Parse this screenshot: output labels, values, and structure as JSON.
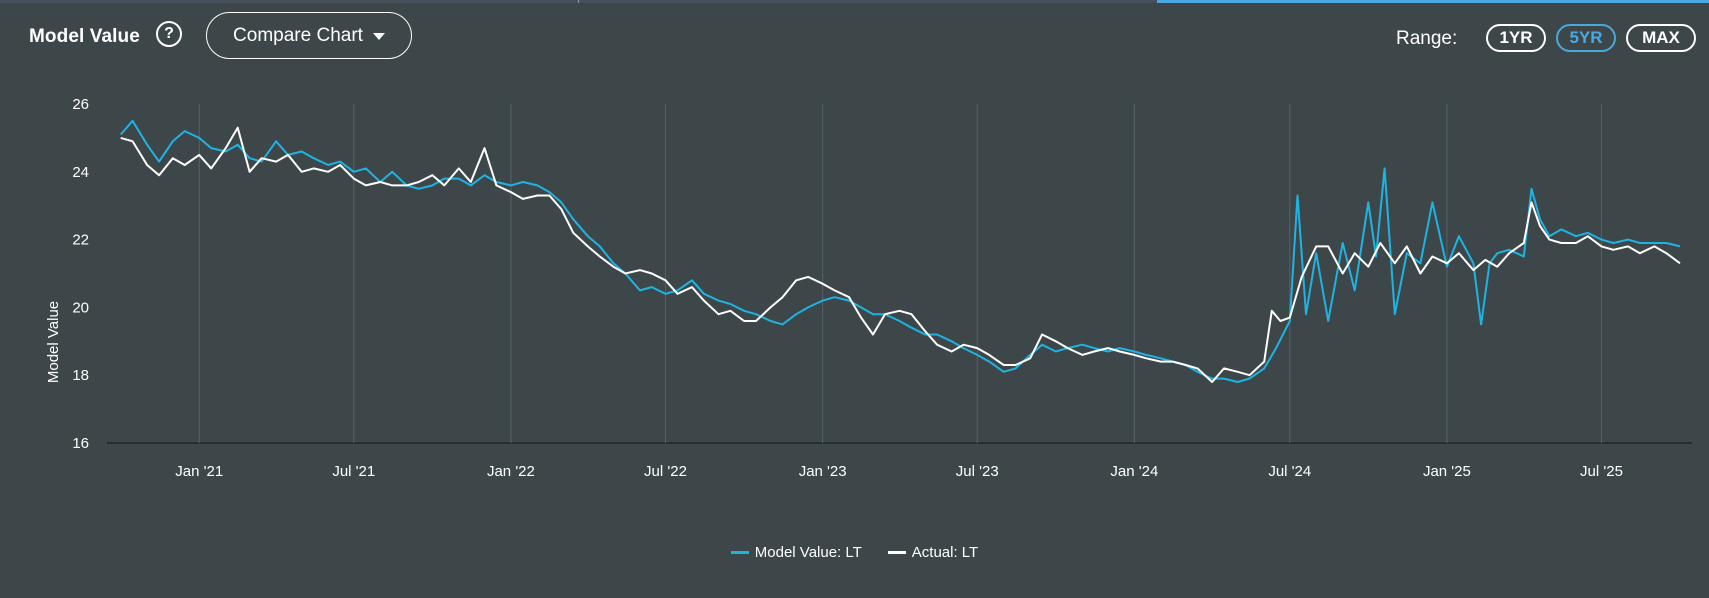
{
  "header": {
    "title": "Model Value",
    "help_icon": "question-circle-icon",
    "compare_label": "Compare Chart",
    "range_label": "Range:",
    "range_options": [
      "1YR",
      "5YR",
      "MAX"
    ],
    "range_selected": "5YR"
  },
  "colors": {
    "background": "#3d4749",
    "model_series": "#1fb3e3",
    "actual_series": "#ffffff",
    "accent": "#4aa8e0"
  },
  "chart_data": {
    "type": "line",
    "title": "",
    "xlabel": "",
    "ylabel": "Model Value",
    "ylim": [
      16,
      26
    ],
    "yticks": [
      "16",
      "18",
      "20",
      "22",
      "24",
      "26"
    ],
    "x_range": [
      "2020-09-15",
      "2025-10-15"
    ],
    "xticks": [
      {
        "date": "2021-01-01",
        "label": "Jan '21"
      },
      {
        "date": "2021-07-01",
        "label": "Jul '21"
      },
      {
        "date": "2022-01-01",
        "label": "Jan '22"
      },
      {
        "date": "2022-07-01",
        "label": "Jul '22"
      },
      {
        "date": "2023-01-01",
        "label": "Jan '23"
      },
      {
        "date": "2023-07-01",
        "label": "Jul '23"
      },
      {
        "date": "2024-01-01",
        "label": "Jan '24"
      },
      {
        "date": "2024-07-01",
        "label": "Jul '24"
      },
      {
        "date": "2025-01-01",
        "label": "Jan '25"
      },
      {
        "date": "2025-07-01",
        "label": "Jul '25"
      }
    ],
    "grid": "vertical",
    "legend_position": "bottom-center",
    "series": [
      {
        "name": "Model Value: LT",
        "color": "#1fb3e3",
        "points": [
          [
            "2020-10-01",
            25.1
          ],
          [
            "2020-10-15",
            25.5
          ],
          [
            "2020-11-01",
            24.8
          ],
          [
            "2020-11-15",
            24.3
          ],
          [
            "2020-12-01",
            24.9
          ],
          [
            "2020-12-15",
            25.2
          ],
          [
            "2021-01-01",
            25.0
          ],
          [
            "2021-01-15",
            24.7
          ],
          [
            "2021-02-01",
            24.6
          ],
          [
            "2021-02-15",
            24.8
          ],
          [
            "2021-03-01",
            24.4
          ],
          [
            "2021-03-15",
            24.3
          ],
          [
            "2021-04-01",
            24.9
          ],
          [
            "2021-04-15",
            24.5
          ],
          [
            "2021-05-01",
            24.6
          ],
          [
            "2021-05-15",
            24.4
          ],
          [
            "2021-06-01",
            24.2
          ],
          [
            "2021-06-15",
            24.3
          ],
          [
            "2021-07-01",
            24.0
          ],
          [
            "2021-07-15",
            24.1
          ],
          [
            "2021-08-01",
            23.7
          ],
          [
            "2021-08-15",
            24.0
          ],
          [
            "2021-09-01",
            23.6
          ],
          [
            "2021-09-15",
            23.5
          ],
          [
            "2021-10-01",
            23.6
          ],
          [
            "2021-10-15",
            23.8
          ],
          [
            "2021-11-01",
            23.8
          ],
          [
            "2021-11-15",
            23.6
          ],
          [
            "2021-12-01",
            23.9
          ],
          [
            "2021-12-15",
            23.7
          ],
          [
            "2022-01-01",
            23.6
          ],
          [
            "2022-01-15",
            23.7
          ],
          [
            "2022-02-01",
            23.6
          ],
          [
            "2022-02-15",
            23.4
          ],
          [
            "2022-03-01",
            23.1
          ],
          [
            "2022-03-15",
            22.6
          ],
          [
            "2022-04-01",
            22.1
          ],
          [
            "2022-04-15",
            21.8
          ],
          [
            "2022-05-01",
            21.3
          ],
          [
            "2022-05-15",
            21.0
          ],
          [
            "2022-06-01",
            20.5
          ],
          [
            "2022-06-15",
            20.6
          ],
          [
            "2022-07-01",
            20.4
          ],
          [
            "2022-07-15",
            20.5
          ],
          [
            "2022-08-01",
            20.8
          ],
          [
            "2022-08-15",
            20.4
          ],
          [
            "2022-09-01",
            20.2
          ],
          [
            "2022-09-15",
            20.1
          ],
          [
            "2022-10-01",
            19.9
          ],
          [
            "2022-10-15",
            19.8
          ],
          [
            "2022-11-01",
            19.6
          ],
          [
            "2022-11-15",
            19.5
          ],
          [
            "2022-12-01",
            19.8
          ],
          [
            "2022-12-15",
            20.0
          ],
          [
            "2023-01-01",
            20.2
          ],
          [
            "2023-01-15",
            20.3
          ],
          [
            "2023-02-01",
            20.2
          ],
          [
            "2023-02-15",
            20.0
          ],
          [
            "2023-03-01",
            19.8
          ],
          [
            "2023-03-15",
            19.8
          ],
          [
            "2023-04-01",
            19.6
          ],
          [
            "2023-04-15",
            19.4
          ],
          [
            "2023-05-01",
            19.2
          ],
          [
            "2023-05-15",
            19.2
          ],
          [
            "2023-06-01",
            19.0
          ],
          [
            "2023-06-15",
            18.8
          ],
          [
            "2023-07-01",
            18.6
          ],
          [
            "2023-07-15",
            18.4
          ],
          [
            "2023-08-01",
            18.1
          ],
          [
            "2023-08-15",
            18.2
          ],
          [
            "2023-09-01",
            18.6
          ],
          [
            "2023-09-15",
            18.9
          ],
          [
            "2023-10-01",
            18.7
          ],
          [
            "2023-10-15",
            18.8
          ],
          [
            "2023-11-01",
            18.9
          ],
          [
            "2023-11-15",
            18.8
          ],
          [
            "2023-12-01",
            18.7
          ],
          [
            "2023-12-15",
            18.8
          ],
          [
            "2024-01-01",
            18.7
          ],
          [
            "2024-01-15",
            18.6
          ],
          [
            "2024-02-01",
            18.5
          ],
          [
            "2024-02-15",
            18.4
          ],
          [
            "2024-03-01",
            18.3
          ],
          [
            "2024-03-15",
            18.1
          ],
          [
            "2024-04-01",
            17.9
          ],
          [
            "2024-04-15",
            17.9
          ],
          [
            "2024-05-01",
            17.8
          ],
          [
            "2024-05-15",
            17.9
          ],
          [
            "2024-06-01",
            18.2
          ],
          [
            "2024-06-15",
            18.8
          ],
          [
            "2024-07-01",
            19.6
          ],
          [
            "2024-07-10",
            23.3
          ],
          [
            "2024-07-20",
            19.8
          ],
          [
            "2024-08-01",
            21.6
          ],
          [
            "2024-08-15",
            19.6
          ],
          [
            "2024-09-01",
            21.9
          ],
          [
            "2024-09-15",
            20.5
          ],
          [
            "2024-10-01",
            23.1
          ],
          [
            "2024-10-10",
            21.5
          ],
          [
            "2024-10-20",
            24.1
          ],
          [
            "2024-11-01",
            19.8
          ],
          [
            "2024-11-15",
            21.6
          ],
          [
            "2024-12-01",
            21.3
          ],
          [
            "2024-12-15",
            23.1
          ],
          [
            "2025-01-01",
            21.2
          ],
          [
            "2025-01-15",
            22.1
          ],
          [
            "2025-02-01",
            21.3
          ],
          [
            "2025-02-10",
            19.5
          ],
          [
            "2025-02-20",
            21.3
          ],
          [
            "2025-03-01",
            21.6
          ],
          [
            "2025-03-15",
            21.7
          ],
          [
            "2025-04-01",
            21.5
          ],
          [
            "2025-04-10",
            23.5
          ],
          [
            "2025-04-20",
            22.6
          ],
          [
            "2025-05-01",
            22.1
          ],
          [
            "2025-05-15",
            22.3
          ],
          [
            "2025-06-01",
            22.1
          ],
          [
            "2025-06-15",
            22.2
          ],
          [
            "2025-07-01",
            22.0
          ],
          [
            "2025-07-15",
            21.9
          ],
          [
            "2025-08-01",
            22.0
          ],
          [
            "2025-08-15",
            21.9
          ],
          [
            "2025-09-01",
            21.9
          ],
          [
            "2025-09-15",
            21.9
          ],
          [
            "2025-10-01",
            21.8
          ]
        ]
      },
      {
        "name": "Actual: LT",
        "color": "#ffffff",
        "points": [
          [
            "2020-10-01",
            25.0
          ],
          [
            "2020-10-15",
            24.9
          ],
          [
            "2020-11-01",
            24.2
          ],
          [
            "2020-11-15",
            23.9
          ],
          [
            "2020-12-01",
            24.4
          ],
          [
            "2020-12-15",
            24.2
          ],
          [
            "2021-01-01",
            24.5
          ],
          [
            "2021-01-15",
            24.1
          ],
          [
            "2021-02-01",
            24.7
          ],
          [
            "2021-02-15",
            25.3
          ],
          [
            "2021-03-01",
            24.0
          ],
          [
            "2021-03-15",
            24.4
          ],
          [
            "2021-04-01",
            24.3
          ],
          [
            "2021-04-15",
            24.5
          ],
          [
            "2021-05-01",
            24.0
          ],
          [
            "2021-05-15",
            24.1
          ],
          [
            "2021-06-01",
            24.0
          ],
          [
            "2021-06-15",
            24.2
          ],
          [
            "2021-07-01",
            23.8
          ],
          [
            "2021-07-15",
            23.6
          ],
          [
            "2021-08-01",
            23.7
          ],
          [
            "2021-08-15",
            23.6
          ],
          [
            "2021-09-01",
            23.6
          ],
          [
            "2021-09-15",
            23.7
          ],
          [
            "2021-10-01",
            23.9
          ],
          [
            "2021-10-15",
            23.6
          ],
          [
            "2021-11-01",
            24.1
          ],
          [
            "2021-11-15",
            23.7
          ],
          [
            "2021-12-01",
            24.7
          ],
          [
            "2021-12-15",
            23.6
          ],
          [
            "2022-01-01",
            23.4
          ],
          [
            "2022-01-15",
            23.2
          ],
          [
            "2022-02-01",
            23.3
          ],
          [
            "2022-02-15",
            23.3
          ],
          [
            "2022-03-01",
            22.9
          ],
          [
            "2022-03-15",
            22.2
          ],
          [
            "2022-04-01",
            21.8
          ],
          [
            "2022-04-15",
            21.5
          ],
          [
            "2022-05-01",
            21.2
          ],
          [
            "2022-05-15",
            21.0
          ],
          [
            "2022-06-01",
            21.1
          ],
          [
            "2022-06-15",
            21.0
          ],
          [
            "2022-07-01",
            20.8
          ],
          [
            "2022-07-15",
            20.4
          ],
          [
            "2022-08-01",
            20.6
          ],
          [
            "2022-08-15",
            20.2
          ],
          [
            "2022-09-01",
            19.8
          ],
          [
            "2022-09-15",
            19.9
          ],
          [
            "2022-10-01",
            19.6
          ],
          [
            "2022-10-15",
            19.6
          ],
          [
            "2022-11-01",
            20.0
          ],
          [
            "2022-11-15",
            20.3
          ],
          [
            "2022-12-01",
            20.8
          ],
          [
            "2022-12-15",
            20.9
          ],
          [
            "2023-01-01",
            20.7
          ],
          [
            "2023-01-15",
            20.5
          ],
          [
            "2023-02-01",
            20.3
          ],
          [
            "2023-02-15",
            19.7
          ],
          [
            "2023-03-01",
            19.2
          ],
          [
            "2023-03-15",
            19.8
          ],
          [
            "2023-04-01",
            19.9
          ],
          [
            "2023-04-15",
            19.8
          ],
          [
            "2023-05-01",
            19.3
          ],
          [
            "2023-05-15",
            18.9
          ],
          [
            "2023-06-01",
            18.7
          ],
          [
            "2023-06-15",
            18.9
          ],
          [
            "2023-07-01",
            18.8
          ],
          [
            "2023-07-15",
            18.6
          ],
          [
            "2023-08-01",
            18.3
          ],
          [
            "2023-08-15",
            18.3
          ],
          [
            "2023-09-01",
            18.5
          ],
          [
            "2023-09-15",
            19.2
          ],
          [
            "2023-10-01",
            19.0
          ],
          [
            "2023-10-15",
            18.8
          ],
          [
            "2023-11-01",
            18.6
          ],
          [
            "2023-11-15",
            18.7
          ],
          [
            "2023-12-01",
            18.8
          ],
          [
            "2023-12-15",
            18.7
          ],
          [
            "2024-01-01",
            18.6
          ],
          [
            "2024-01-15",
            18.5
          ],
          [
            "2024-02-01",
            18.4
          ],
          [
            "2024-02-15",
            18.4
          ],
          [
            "2024-03-01",
            18.3
          ],
          [
            "2024-03-15",
            18.2
          ],
          [
            "2024-04-01",
            17.8
          ],
          [
            "2024-04-15",
            18.2
          ],
          [
            "2024-05-01",
            18.1
          ],
          [
            "2024-05-15",
            18.0
          ],
          [
            "2024-06-01",
            18.4
          ],
          [
            "2024-06-10",
            19.9
          ],
          [
            "2024-06-20",
            19.6
          ],
          [
            "2024-07-01",
            19.7
          ],
          [
            "2024-07-15",
            20.9
          ],
          [
            "2024-08-01",
            21.8
          ],
          [
            "2024-08-15",
            21.8
          ],
          [
            "2024-09-01",
            21.0
          ],
          [
            "2024-09-15",
            21.6
          ],
          [
            "2024-10-01",
            21.2
          ],
          [
            "2024-10-15",
            21.9
          ],
          [
            "2024-11-01",
            21.3
          ],
          [
            "2024-11-15",
            21.8
          ],
          [
            "2024-12-01",
            21.0
          ],
          [
            "2024-12-15",
            21.5
          ],
          [
            "2025-01-01",
            21.3
          ],
          [
            "2025-01-15",
            21.6
          ],
          [
            "2025-02-01",
            21.1
          ],
          [
            "2025-02-15",
            21.4
          ],
          [
            "2025-03-01",
            21.2
          ],
          [
            "2025-03-15",
            21.6
          ],
          [
            "2025-04-01",
            21.9
          ],
          [
            "2025-04-10",
            23.1
          ],
          [
            "2025-04-20",
            22.4
          ],
          [
            "2025-05-01",
            22.0
          ],
          [
            "2025-05-15",
            21.9
          ],
          [
            "2025-06-01",
            21.9
          ],
          [
            "2025-06-15",
            22.1
          ],
          [
            "2025-07-01",
            21.8
          ],
          [
            "2025-07-15",
            21.7
          ],
          [
            "2025-08-01",
            21.8
          ],
          [
            "2025-08-15",
            21.6
          ],
          [
            "2025-09-01",
            21.8
          ],
          [
            "2025-09-15",
            21.6
          ],
          [
            "2025-10-01",
            21.3
          ]
        ]
      }
    ]
  }
}
